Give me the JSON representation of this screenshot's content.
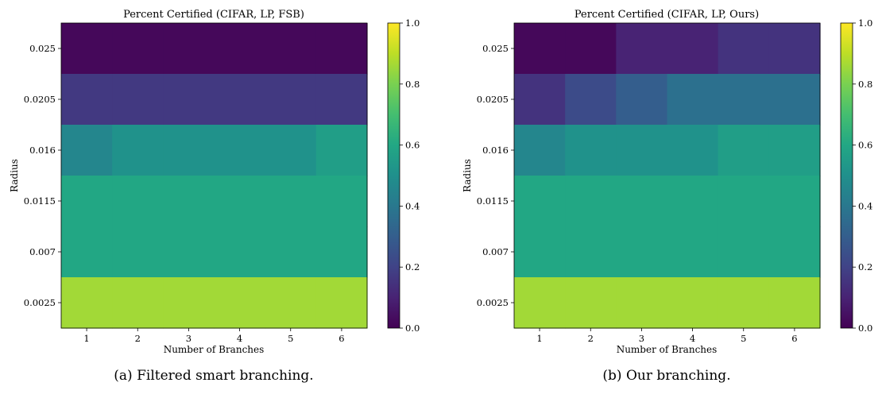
{
  "chart_data": [
    {
      "type": "heatmap",
      "title": "Percent Certified (CIFAR, LP, FSB)",
      "caption": "(a) Filtered smart branching.",
      "xlabel": "Number of Branches",
      "ylabel": "Radius",
      "x": [
        "1",
        "2",
        "3",
        "4",
        "5",
        "6"
      ],
      "y": [
        "0.025",
        "0.0205",
        "0.016",
        "0.0115",
        "0.007",
        "0.0025"
      ],
      "values": [
        [
          0.02,
          0.02,
          0.02,
          0.02,
          0.02,
          0.02
        ],
        [
          0.17,
          0.17,
          0.17,
          0.17,
          0.17,
          0.17
        ],
        [
          0.46,
          0.51,
          0.51,
          0.51,
          0.51,
          0.56
        ],
        [
          0.6,
          0.6,
          0.6,
          0.6,
          0.6,
          0.6
        ],
        [
          0.6,
          0.6,
          0.6,
          0.6,
          0.6,
          0.6
        ],
        [
          0.86,
          0.86,
          0.86,
          0.86,
          0.86,
          0.86
        ]
      ],
      "colorbar": {
        "range": [
          0.0,
          1.0
        ],
        "ticks": [
          "0.0",
          "0.2",
          "0.4",
          "0.6",
          "0.8",
          "1.0"
        ],
        "colormap": "viridis"
      }
    },
    {
      "type": "heatmap",
      "title": "Percent Certified (CIFAR, LP, Ours)",
      "caption": "(b) Our branching.",
      "xlabel": "Number of Branches",
      "ylabel": "Radius",
      "x": [
        "1",
        "2",
        "3",
        "4",
        "5",
        "6"
      ],
      "y": [
        "0.025",
        "0.0205",
        "0.016",
        "0.0115",
        "0.007",
        "0.0025"
      ],
      "values": [
        [
          0.02,
          0.02,
          0.1,
          0.1,
          0.15,
          0.15
        ],
        [
          0.15,
          0.23,
          0.3,
          0.37,
          0.37,
          0.37
        ],
        [
          0.46,
          0.51,
          0.51,
          0.51,
          0.56,
          0.56
        ],
        [
          0.6,
          0.6,
          0.6,
          0.6,
          0.6,
          0.6
        ],
        [
          0.6,
          0.6,
          0.6,
          0.6,
          0.6,
          0.6
        ],
        [
          0.86,
          0.86,
          0.86,
          0.86,
          0.86,
          0.86
        ]
      ],
      "colorbar": {
        "range": [
          0.0,
          1.0
        ],
        "ticks": [
          "0.0",
          "0.2",
          "0.4",
          "0.6",
          "0.8",
          "1.0"
        ],
        "colormap": "viridis"
      }
    }
  ]
}
